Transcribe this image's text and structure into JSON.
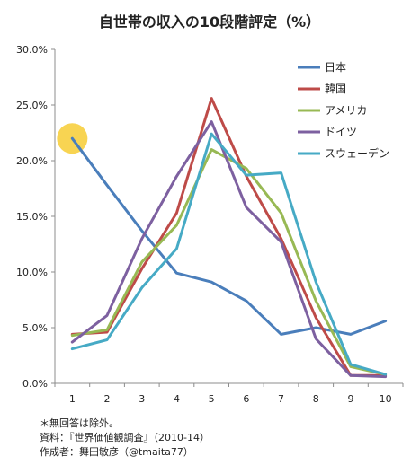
{
  "chart_data": {
    "type": "line",
    "title": "自世帯の収入の10段階評定（%）",
    "x": [
      1,
      2,
      3,
      4,
      5,
      6,
      7,
      8,
      9,
      10
    ],
    "ylim": [
      0,
      30
    ],
    "yticks": [
      "0.0%",
      "5.0%",
      "10.0%",
      "15.0%",
      "20.0%",
      "25.0%",
      "30.0%"
    ],
    "grid": false,
    "legend_position": "top-right",
    "highlight": {
      "series": "日本",
      "x": 1,
      "y": 22.0,
      "color": "#f5c518"
    },
    "series": [
      {
        "name": "日本",
        "color": "#4a7ebb",
        "values": [
          22.0,
          17.8,
          13.7,
          9.9,
          9.1,
          7.4,
          4.4,
          5.0,
          4.4,
          5.6
        ]
      },
      {
        "name": "韓国",
        "color": "#be4b48",
        "values": [
          4.4,
          4.6,
          10.3,
          15.3,
          25.6,
          18.6,
          13.0,
          5.9,
          0.7,
          0.7
        ]
      },
      {
        "name": "アメリカ",
        "color": "#98b954",
        "values": [
          4.3,
          4.8,
          10.9,
          14.2,
          21.0,
          19.3,
          15.3,
          7.4,
          1.5,
          0.8
        ]
      },
      {
        "name": "ドイツ",
        "color": "#7d60a0",
        "values": [
          3.7,
          6.1,
          13.0,
          18.6,
          23.5,
          15.8,
          12.7,
          4.0,
          0.7,
          0.6
        ]
      },
      {
        "name": "スウェーデン",
        "color": "#46aac5",
        "values": [
          3.1,
          3.9,
          8.6,
          12.1,
          22.4,
          18.7,
          18.9,
          9.1,
          1.7,
          0.8
        ]
      }
    ]
  },
  "notes": {
    "line1": "＊無回答は除外。",
    "line2": "資料：『世界価値観調査』（2010-14）",
    "line3": "作成者：舞田敏彦（@tmaita77）"
  }
}
